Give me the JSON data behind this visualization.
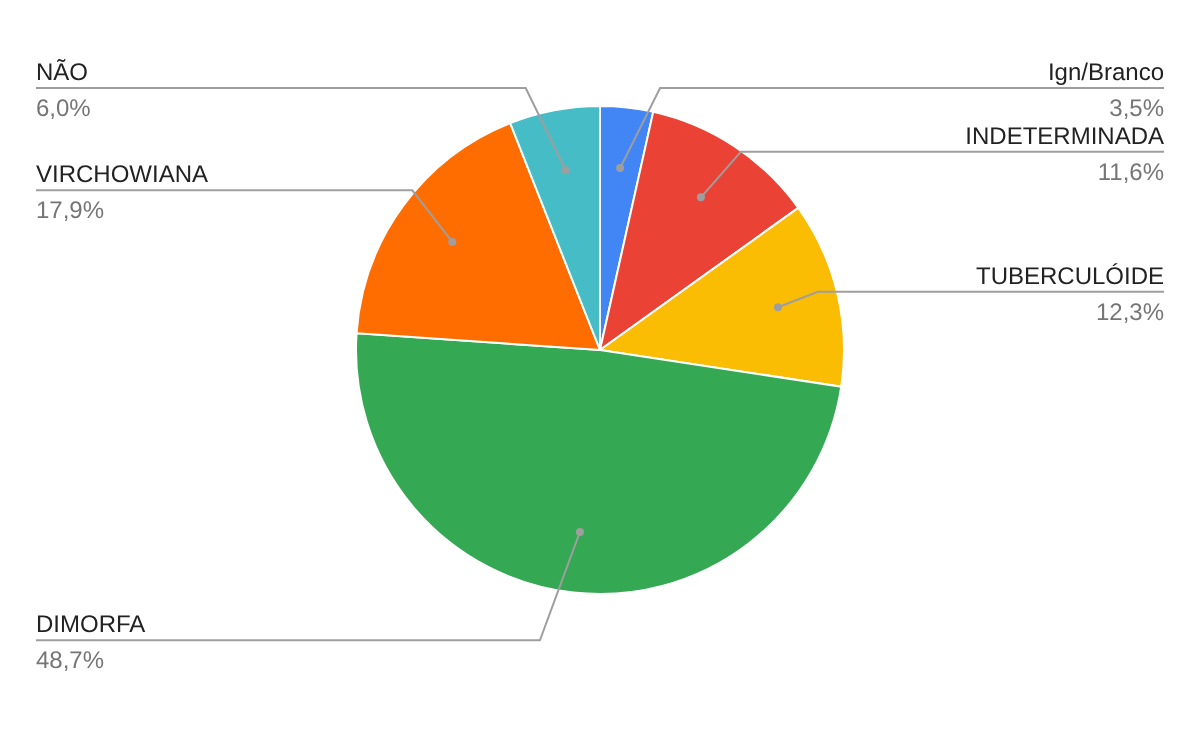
{
  "chart_data": {
    "type": "pie",
    "categories": [
      "Ign/Branco",
      "INDETERMINADA",
      "TUBERCULÓIDE",
      "DIMORFA",
      "VIRCHOWIANA",
      "NÃO"
    ],
    "values": [
      3.5,
      11.6,
      12.3,
      48.7,
      17.9,
      6.0
    ],
    "value_labels": [
      "3,5%",
      "11,6%",
      "12,3%",
      "48,7%",
      "17,9%",
      "6,0%"
    ],
    "colors": [
      "#4285f4",
      "#ea4335",
      "#fbbc04",
      "#34a853",
      "#ff6d01",
      "#46bdc6"
    ]
  }
}
